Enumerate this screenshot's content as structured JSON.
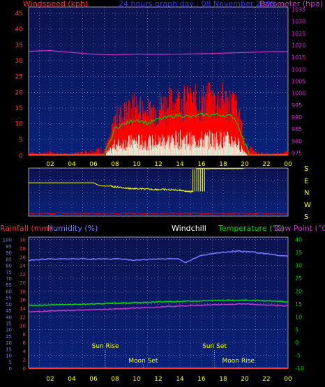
{
  "header": {
    "windspeed_label": "Windspeed (kph)",
    "title": "24 hours graph day : 08 November 2008",
    "barometer_label": "Barometer (hpa)"
  },
  "colors": {
    "background": "#000000",
    "plot_bg_top": "#0d1250",
    "plot_bg_bottom": "#08227a",
    "wind": "#ff0000",
    "gust": "#00cc00",
    "wind_min": "#e8ffe8",
    "barometer": "#cc33cc",
    "direction": "#ffff00",
    "rainfall": "#ff3333",
    "humidity": "#7777ff",
    "temperature": "#00dd00",
    "dewpoint": "#cc33cc",
    "axis_left": "#ff4444",
    "axis_right_top": "#cc33cc",
    "axis_hum": "#7777ff",
    "axis_temp": "#00cc00",
    "x_axis": "#ffff00"
  },
  "chart_data": [
    {
      "type": "line",
      "panel": "wind",
      "xlabel": "",
      "x_ticks": [
        "02",
        "04",
        "06",
        "08",
        "10",
        "12",
        "14",
        "16",
        "18",
        "20",
        "22",
        "00"
      ],
      "y_left_label": "Windspeed (kph)",
      "y_left_ticks": [
        0,
        5,
        10,
        15,
        20,
        25,
        30,
        35,
        40,
        45
      ],
      "ylim_left": [
        0,
        47
      ],
      "y_right_label": "Barometer (hpa)",
      "y_right_ticks": [
        975,
        980,
        985,
        990,
        995,
        1000,
        1005,
        1010,
        1015,
        1020,
        1025,
        1030,
        1035
      ],
      "ylim_right": [
        974,
        1036
      ],
      "grid": true,
      "series": [
        {
          "name": "Windspeed (kph)",
          "axis": "left",
          "x": [
            0,
            1,
            2,
            3,
            4,
            5,
            6,
            7,
            7.5,
            8,
            9,
            10,
            11,
            12,
            13,
            14,
            15,
            16,
            17,
            18,
            19,
            19.5,
            20,
            20.5,
            21,
            22,
            23,
            24
          ],
          "values": [
            1,
            0.5,
            1,
            0.5,
            0.5,
            1,
            1.5,
            2,
            5,
            12,
            14,
            16,
            14,
            16,
            17,
            18,
            17,
            18,
            18,
            18,
            17,
            12,
            4,
            2,
            1,
            0.5,
            0.5,
            1
          ]
        },
        {
          "name": "Barometer (hpa)",
          "axis": "right",
          "x": [
            0,
            2,
            4,
            6,
            8,
            10,
            12,
            14,
            16,
            18,
            20,
            22,
            24
          ],
          "values": [
            1017.5,
            1017.8,
            1017,
            1016.3,
            1016,
            1016.3,
            1016.2,
            1016.3,
            1016.5,
            1016.7,
            1017,
            1017.3,
            1017.4
          ]
        }
      ]
    },
    {
      "type": "line",
      "panel": "direction",
      "y_ticks": [
        "S",
        "E",
        "N",
        "W",
        "S"
      ],
      "grid": true,
      "series": [
        {
          "name": "",
          "x": [
            0,
            4,
            6,
            6.5,
            7,
            7.5,
            8,
            9,
            10,
            11,
            12,
            13,
            14,
            15,
            15.5,
            16,
            17,
            18,
            19,
            20,
            21,
            22,
            23,
            24
          ],
          "values": [
            110,
            110,
            110,
            130,
            135,
            135,
            140,
            150,
            155,
            158,
            160,
            162,
            165,
            178,
            5,
            3,
            3,
            3,
            3,
            3,
            3,
            3,
            3,
            3
          ]
        }
      ]
    },
    {
      "type": "line",
      "panel": "temperature",
      "x_ticks": [
        "02",
        "04",
        "06",
        "08",
        "10",
        "12",
        "14",
        "16",
        "18",
        "20",
        "22",
        "00"
      ],
      "y_rain_label": "Rainfall (mm)",
      "y_rain_ticks": [
        0,
        2,
        4,
        6,
        8,
        10,
        12,
        14,
        16,
        18,
        20,
        22,
        24,
        26,
        28,
        30
      ],
      "y_hum_label": "Humidity (%)",
      "y_hum_ticks": [
        0,
        5,
        10,
        15,
        20,
        25,
        30,
        35,
        40,
        45,
        50,
        55,
        60,
        65,
        70,
        75,
        80,
        85,
        90,
        95,
        100
      ],
      "windchill_label": "Windchill",
      "y_temp_label": "Temperature (°C)",
      "dewpoint_label": "Dew Point (°C)",
      "y_temp_ticks": [
        -10,
        -5,
        0,
        5,
        10,
        15,
        20,
        25,
        30,
        35,
        40
      ],
      "ylim_temp": [
        -10,
        41
      ],
      "grid": true,
      "series": [
        {
          "name": "Humidity (%)",
          "axis": "hum",
          "x": [
            0,
            2,
            4,
            6,
            8,
            10,
            12,
            14,
            14.5,
            15,
            16,
            17,
            18,
            19,
            20,
            21,
            22,
            23,
            24
          ],
          "values": [
            84,
            85,
            85,
            85,
            85,
            84,
            85,
            85,
            82,
            84,
            88,
            89,
            90,
            91,
            91,
            90,
            89,
            88,
            87
          ]
        },
        {
          "name": "Temperature (°C)",
          "axis": "temp",
          "x": [
            0,
            2,
            4,
            6,
            8,
            10,
            12,
            14,
            16,
            18,
            20,
            22,
            24
          ],
          "values": [
            14.4,
            14.6,
            14.8,
            15,
            15.3,
            15.5,
            15.8,
            16,
            16.2,
            16.4,
            16.5,
            16.2,
            15.8
          ]
        },
        {
          "name": "Dew Point (°C)",
          "axis": "temp",
          "x": [
            0,
            2,
            4,
            6,
            8,
            10,
            12,
            14,
            16,
            18,
            20,
            22,
            24
          ],
          "values": [
            12,
            12.2,
            12.5,
            12.8,
            13,
            13.4,
            13.8,
            14.2,
            14.5,
            14.8,
            15,
            14.6,
            14.2
          ]
        },
        {
          "name": "Rainfall (mm)",
          "axis": "rain",
          "x": [
            0,
            24
          ],
          "values": [
            0,
            0
          ]
        }
      ],
      "annotations": [
        {
          "label": "Sun Rise",
          "x": 7.1
        },
        {
          "label": "Moon Set",
          "x": 10.6
        },
        {
          "label": "Sun Set",
          "x": 17.2
        },
        {
          "label": "Moon Rise",
          "x": 19.4
        }
      ]
    }
  ]
}
